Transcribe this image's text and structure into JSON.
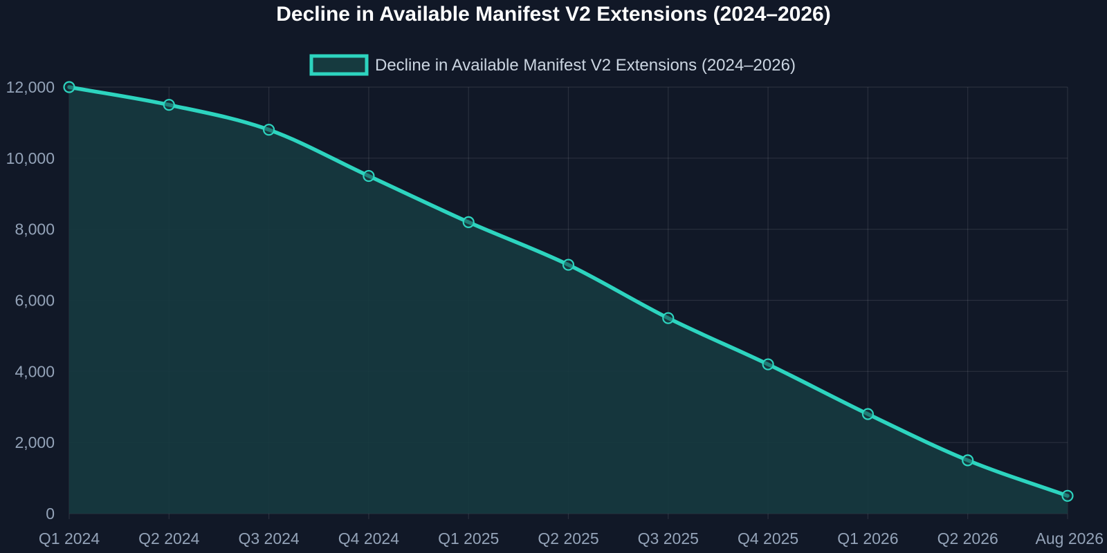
{
  "colors": {
    "background": "#111827",
    "line": "#2dd4bf",
    "fill": "#163a3f",
    "title": "#ffffff",
    "legend_text": "#cbd5e1",
    "tick_text": "#94a3b8"
  },
  "chart_data": {
    "type": "area",
    "title": "Decline in Available Manifest V2 Extensions (2024–2026)",
    "xlabel": "",
    "ylabel": "",
    "categories": [
      "Q1 2024",
      "Q2 2024",
      "Q3 2024",
      "Q4 2024",
      "Q1 2025",
      "Q2 2025",
      "Q3 2025",
      "Q4 2025",
      "Q1 2026",
      "Q2 2026",
      "Aug 2026"
    ],
    "series": [
      {
        "name": "Decline in Available Manifest V2 Extensions (2024–2026)",
        "values": [
          12000,
          11500,
          10800,
          9500,
          8200,
          7000,
          5500,
          4200,
          2800,
          1500,
          500
        ]
      }
    ],
    "ylim": [
      0,
      12000
    ],
    "yticks": [
      0,
      2000,
      4000,
      6000,
      8000,
      10000,
      12000
    ],
    "ytick_labels": [
      "0",
      "2,000",
      "4,000",
      "6,000",
      "8,000",
      "10,000",
      "12,000"
    ],
    "grid": true,
    "legend": "top-center",
    "smooth": true
  }
}
